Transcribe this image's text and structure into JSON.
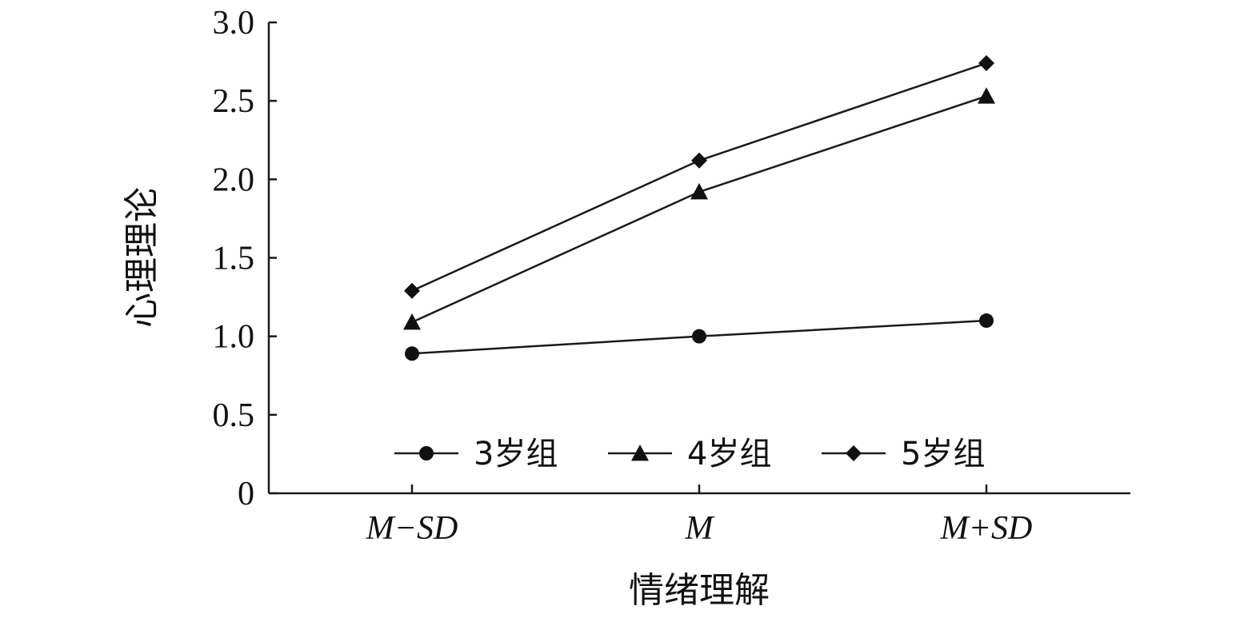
{
  "chart_data": {
    "type": "line",
    "title": "",
    "xlabel": "情绪理解",
    "ylabel": "心理理论",
    "categories": [
      "M−SD",
      "M",
      "M+SD"
    ],
    "ylim": [
      0,
      3.0
    ],
    "yticks": [
      "0",
      "0.5",
      "1.0",
      "1.5",
      "2.0",
      "2.5",
      "3.0"
    ],
    "grid": false,
    "legend_position": "bottom-inside",
    "series": [
      {
        "name": "3岁组",
        "marker": "circle",
        "values": [
          0.89,
          1.0,
          1.1
        ]
      },
      {
        "name": "4岁组",
        "marker": "triangle",
        "values": [
          1.09,
          1.92,
          2.53
        ]
      },
      {
        "name": "5岁组",
        "marker": "diamond",
        "values": [
          1.29,
          2.12,
          2.74
        ]
      }
    ],
    "colors": {
      "line": "#1a1a1a",
      "axis": "#1a1a1a",
      "marker": "#111111"
    }
  }
}
